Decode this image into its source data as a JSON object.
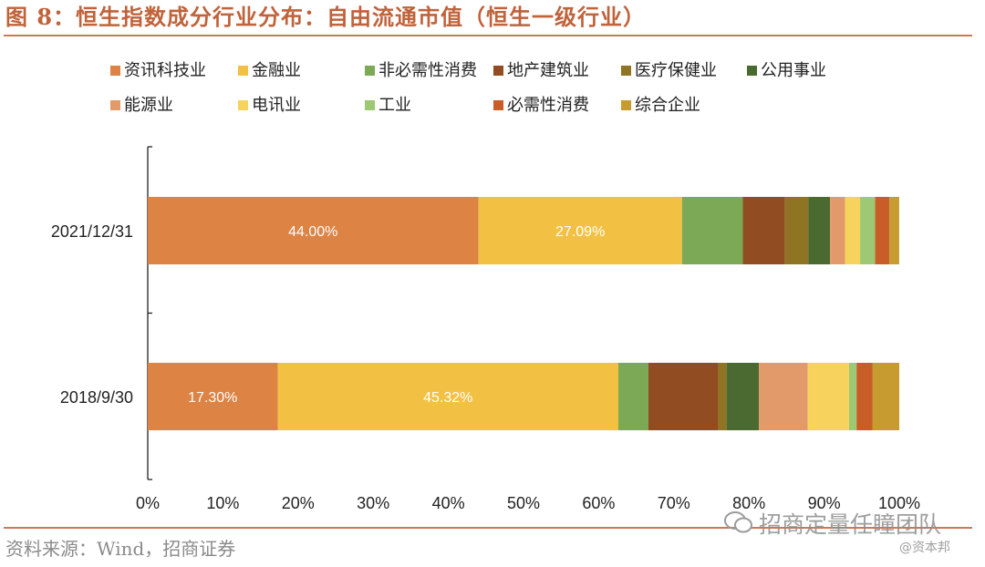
{
  "title": "图 8：恒生指数成分行业分布：自由流通市值（恒生一级行业）",
  "source": "资料来源：Wind，招商证券",
  "watermark": {
    "main": "招商定量任瞳团队",
    "sub": "@资本邦"
  },
  "colors": {
    "资讯科技业": "#dd8344",
    "金融业": "#f2c144",
    "非必需性消费": "#7ba956",
    "地产建筑业": "#924c21",
    "医疗保健业": "#8f7424",
    "公用事业": "#4a6a31",
    "能源业": "#e39a6a",
    "电讯业": "#f7d35e",
    "工业": "#9dc874",
    "必需性消费": "#c95d27",
    "综合企业": "#c89b30"
  },
  "chart_data": {
    "type": "bar",
    "orientation": "horizontal",
    "stacked": true,
    "categories": [
      "2021/12/31",
      "2018/9/30"
    ],
    "series": [
      {
        "name": "资讯科技业",
        "values": [
          44.0,
          17.3
        ]
      },
      {
        "name": "金融业",
        "values": [
          27.09,
          45.32
        ]
      },
      {
        "name": "非必需性消费",
        "values": [
          8.1,
          4.0
        ]
      },
      {
        "name": "地产建筑业",
        "values": [
          5.6,
          9.3
        ]
      },
      {
        "name": "医疗保健业",
        "values": [
          3.1,
          1.1
        ]
      },
      {
        "name": "公用事业",
        "values": [
          2.9,
          4.3
        ]
      },
      {
        "name": "能源业",
        "values": [
          2.0,
          6.5
        ]
      },
      {
        "name": "电讯业",
        "values": [
          2.0,
          5.5
        ]
      },
      {
        "name": "工业",
        "values": [
          2.0,
          1.0
        ]
      },
      {
        "name": "必需性消费",
        "values": [
          1.9,
          2.1
        ]
      },
      {
        "name": "综合企业",
        "values": [
          1.3,
          3.58
        ]
      }
    ],
    "data_labels": [
      {
        "series": "资讯科技业",
        "category": "2021/12/31",
        "text": "44.00%"
      },
      {
        "series": "金融业",
        "category": "2021/12/31",
        "text": "27.09%"
      },
      {
        "series": "资讯科技业",
        "category": "2018/9/30",
        "text": "17.30%"
      },
      {
        "series": "金融业",
        "category": "2018/9/30",
        "text": "45.32%"
      }
    ],
    "xlim": [
      0,
      100
    ],
    "xticks": [
      "0%",
      "10%",
      "20%",
      "30%",
      "40%",
      "50%",
      "60%",
      "70%",
      "80%",
      "90%",
      "100%"
    ],
    "legend": {
      "placement": "top",
      "rows": [
        [
          "资讯科技业",
          "金融业",
          "非必需性消费",
          "地产建筑业",
          "医疗保健业",
          "公用事业"
        ],
        [
          "能源业",
          "电讯业",
          "工业",
          "必需性消费",
          "综合企业"
        ]
      ]
    },
    "grid": false
  }
}
